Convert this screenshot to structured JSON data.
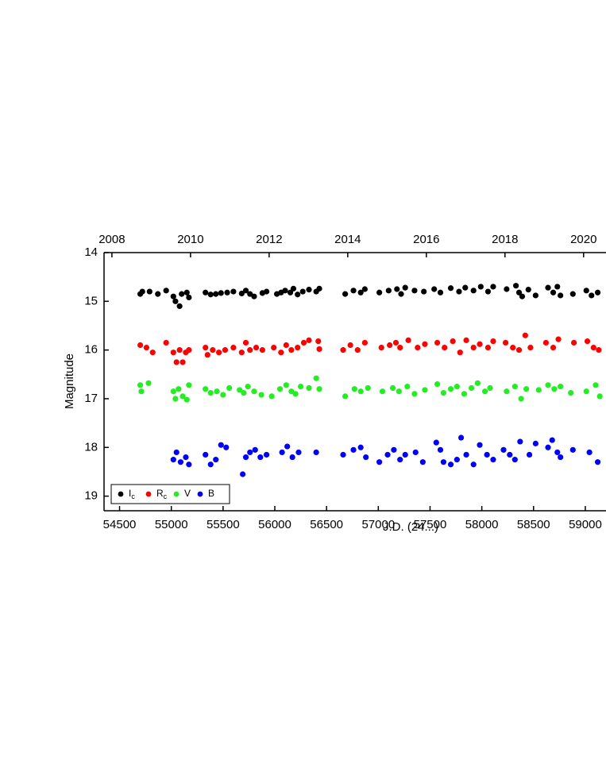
{
  "chart_data": {
    "type": "scatter",
    "xlabel": "J.D. (24...)",
    "ylabel": "Magnitude",
    "xlim": [
      54350,
      59200
    ],
    "xticks": [
      54500,
      55000,
      55500,
      56000,
      56500,
      57000,
      57500,
      58000,
      58500,
      59000
    ],
    "x2lim": [
      2007.8,
      2020.57
    ],
    "x2ticks": [
      2008,
      2010,
      2012,
      2014,
      2016,
      2018,
      2020
    ],
    "ylim": [
      14,
      19.3
    ],
    "yticks": [
      14,
      15,
      16,
      17,
      18,
      19
    ],
    "y_reversed": true,
    "legend": "lower left",
    "series": [
      {
        "name": "Ic",
        "color": "#000000",
        "x": [
          54700,
          54720,
          54790,
          54870,
          54950,
          55020,
          55040,
          55080,
          55100,
          55150,
          55170,
          55330,
          55380,
          55430,
          55480,
          55540,
          55600,
          55680,
          55720,
          55760,
          55800,
          55880,
          55920,
          56020,
          56060,
          56100,
          56150,
          56180,
          56220,
          56270,
          56330,
          56400,
          56430,
          56680,
          56760,
          56830,
          56870,
          57010,
          57100,
          57180,
          57220,
          57260,
          57350,
          57440,
          57540,
          57600,
          57700,
          57780,
          57840,
          57920,
          57990,
          58060,
          58110,
          58240,
          58330,
          58360,
          58390,
          58450,
          58520,
          58640,
          58690,
          58730,
          58760,
          58880,
          59010,
          59060,
          59120
        ],
        "values": [
          14.85,
          14.8,
          14.8,
          14.85,
          14.78,
          14.9,
          15.0,
          15.1,
          14.85,
          14.82,
          14.92,
          14.82,
          14.86,
          14.85,
          14.83,
          14.82,
          14.8,
          14.84,
          14.78,
          14.85,
          14.9,
          14.83,
          14.8,
          14.85,
          14.82,
          14.78,
          14.82,
          14.74,
          14.86,
          14.8,
          14.76,
          14.8,
          14.74,
          14.85,
          14.78,
          14.82,
          14.75,
          14.82,
          14.78,
          14.75,
          14.85,
          14.72,
          14.78,
          14.8,
          14.75,
          14.82,
          14.73,
          14.8,
          14.72,
          14.78,
          14.7,
          14.8,
          14.7,
          14.75,
          14.68,
          14.82,
          14.9,
          14.76,
          14.88,
          14.72,
          14.82,
          14.7,
          14.88,
          14.85,
          14.78,
          14.88,
          14.82
        ]
      },
      {
        "name": "Rc",
        "color": "#ff0000",
        "x": [
          54700,
          54760,
          54820,
          54950,
          55020,
          55050,
          55080,
          55110,
          55140,
          55170,
          55330,
          55350,
          55400,
          55460,
          55520,
          55600,
          55680,
          55720,
          55760,
          55820,
          55880,
          55990,
          56060,
          56110,
          56160,
          56220,
          56280,
          56330,
          56420,
          56430,
          56660,
          56730,
          56800,
          56870,
          57030,
          57110,
          57170,
          57210,
          57290,
          57380,
          57450,
          57570,
          57640,
          57720,
          57790,
          57850,
          57920,
          57980,
          58060,
          58110,
          58230,
          58300,
          58360,
          58420,
          58470,
          58620,
          58690,
          58740,
          58890,
          59020,
          59080,
          59130
        ],
        "values": [
          15.9,
          15.95,
          16.05,
          15.85,
          16.05,
          16.25,
          16.0,
          16.25,
          16.05,
          16.0,
          15.95,
          16.1,
          16.0,
          16.05,
          16.0,
          15.95,
          16.05,
          15.85,
          16.0,
          15.95,
          16.0,
          15.95,
          16.05,
          15.9,
          16.0,
          15.95,
          15.85,
          15.8,
          15.82,
          15.98,
          16.0,
          15.9,
          16.0,
          15.85,
          15.95,
          15.9,
          15.85,
          15.95,
          15.8,
          15.95,
          15.88,
          15.85,
          15.95,
          15.82,
          16.05,
          15.8,
          15.95,
          15.88,
          15.95,
          15.82,
          15.85,
          15.95,
          16.0,
          15.7,
          15.95,
          15.85,
          15.95,
          15.78,
          15.85,
          15.82,
          15.95,
          16.0
        ]
      },
      {
        "name": "V",
        "color": "#22ee22",
        "x": [
          54700,
          54710,
          54780,
          55020,
          55040,
          55070,
          55110,
          55150,
          55170,
          55330,
          55380,
          55440,
          55500,
          55560,
          55660,
          55700,
          55740,
          55800,
          55870,
          55970,
          56050,
          56110,
          56160,
          56200,
          56250,
          56330,
          56400,
          56430,
          56680,
          56770,
          56830,
          56900,
          57040,
          57140,
          57200,
          57280,
          57350,
          57450,
          57570,
          57630,
          57700,
          57760,
          57830,
          57900,
          57960,
          58030,
          58080,
          58240,
          58320,
          58380,
          58430,
          58550,
          58640,
          58700,
          58760,
          58860,
          59010,
          59100,
          59140
        ],
        "values": [
          16.72,
          16.85,
          16.68,
          16.85,
          17.0,
          16.8,
          16.95,
          17.02,
          16.72,
          16.8,
          16.88,
          16.85,
          16.92,
          16.78,
          16.82,
          16.88,
          16.75,
          16.85,
          16.92,
          16.95,
          16.8,
          16.72,
          16.85,
          16.9,
          16.75,
          16.78,
          16.58,
          16.8,
          16.95,
          16.8,
          16.85,
          16.78,
          16.85,
          16.78,
          16.85,
          16.75,
          16.9,
          16.82,
          16.7,
          16.88,
          16.8,
          16.75,
          16.9,
          16.78,
          16.68,
          16.85,
          16.78,
          16.85,
          16.75,
          17.0,
          16.8,
          16.82,
          16.72,
          16.8,
          16.75,
          16.88,
          16.85,
          16.72,
          16.95
        ]
      },
      {
        "name": "B",
        "color": "#0000ff",
        "x": [
          55020,
          55050,
          55090,
          55140,
          55170,
          55330,
          55380,
          55430,
          55480,
          55530,
          55690,
          55720,
          55760,
          55810,
          55860,
          55920,
          56070,
          56120,
          56170,
          56230,
          56400,
          56660,
          56760,
          56830,
          56880,
          57010,
          57090,
          57150,
          57210,
          57260,
          57360,
          57430,
          57560,
          57600,
          57630,
          57700,
          57760,
          57800,
          57850,
          57920,
          57980,
          58050,
          58110,
          58210,
          58270,
          58320,
          58370,
          58460,
          58520,
          58640,
          58680,
          58730,
          58760,
          58880,
          59040,
          59120
        ],
        "values": [
          18.25,
          18.1,
          18.3,
          18.2,
          18.35,
          18.15,
          18.35,
          18.25,
          17.95,
          18.0,
          18.55,
          18.2,
          18.1,
          18.05,
          18.2,
          18.15,
          18.1,
          17.98,
          18.2,
          18.1,
          18.1,
          18.15,
          18.05,
          18.0,
          18.2,
          18.3,
          18.15,
          18.05,
          18.25,
          18.15,
          18.1,
          18.3,
          17.9,
          18.05,
          18.3,
          18.35,
          18.25,
          17.8,
          18.15,
          18.35,
          17.95,
          18.15,
          18.25,
          18.05,
          18.15,
          18.25,
          17.88,
          18.15,
          17.92,
          18.0,
          17.85,
          18.1,
          18.2,
          18.05,
          18.1,
          18.3
        ]
      }
    ]
  }
}
